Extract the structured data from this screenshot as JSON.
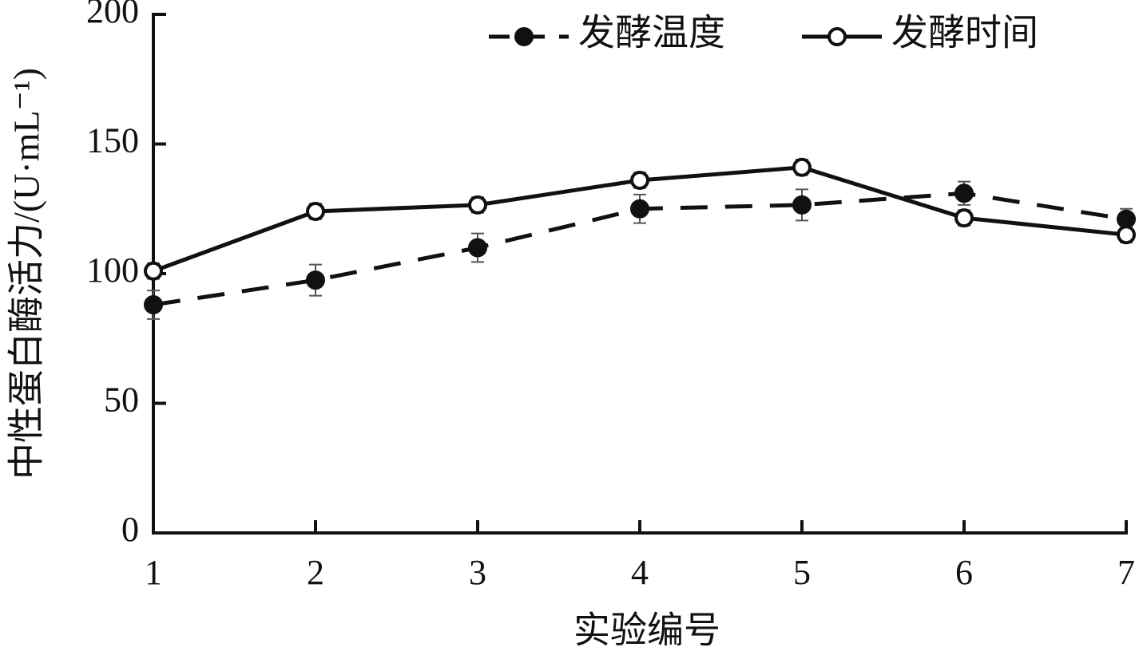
{
  "chart_data": {
    "type": "line",
    "x_label": "实验编号",
    "y_label": "中性蛋白酶活力/(U·mL⁻¹)",
    "x": [
      1,
      2,
      3,
      4,
      5,
      6,
      7
    ],
    "series": [
      {
        "name": "发酵温度",
        "color": "#111111",
        "dashed": true,
        "marker": "filled",
        "values": [
          88,
          97.5,
          110,
          125,
          126.5,
          131,
          121
        ],
        "errors": [
          5.5,
          6,
          5.5,
          5.5,
          6,
          4.5,
          4
        ]
      },
      {
        "name": "发酵时间",
        "color": "#111111",
        "dashed": false,
        "marker": "open",
        "values": [
          101,
          124,
          126.5,
          136,
          141,
          121.5,
          115
        ],
        "errors": [
          3,
          3,
          3,
          3,
          3,
          3,
          3
        ]
      }
    ],
    "xlim": [
      1,
      7
    ],
    "xticks": [
      1,
      2,
      3,
      4,
      5,
      6,
      7
    ],
    "ylim": [
      0,
      200
    ],
    "yticks": [
      0,
      50,
      100,
      150,
      200
    ],
    "grid": false,
    "legend": "upper right"
  }
}
